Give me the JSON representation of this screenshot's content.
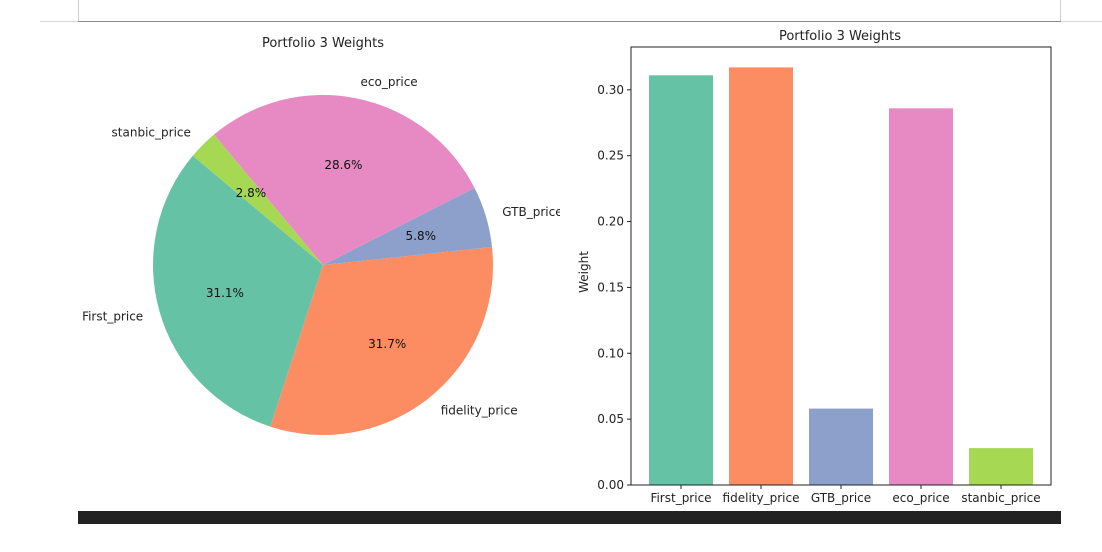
{
  "chart_data": [
    {
      "type": "pie",
      "title": "Portfolio 3 Weights",
      "labels": [
        "First_price",
        "fidelity_price",
        "GTB_price",
        "eco_price",
        "stanbic_price"
      ],
      "values": [
        0.311,
        0.317,
        0.058,
        0.286,
        0.028
      ],
      "pct_labels": [
        "31.1%",
        "31.7%",
        "5.8%",
        "28.6%",
        "2.8%"
      ],
      "colors": [
        "#66c2a5",
        "#fc8d62",
        "#8da0cb",
        "#e78ac3",
        "#a6d854"
      ],
      "start_angle_deg": 140,
      "direction": "counterclockwise"
    },
    {
      "type": "bar",
      "title": "Portfolio 3 Weights",
      "categories": [
        "First_price",
        "fidelity_price",
        "GTB_price",
        "eco_price",
        "stanbic_price"
      ],
      "values": [
        0.311,
        0.317,
        0.058,
        0.286,
        0.028
      ],
      "colors": [
        "#66c2a5",
        "#fc8d62",
        "#8da0cb",
        "#e78ac3",
        "#a6d854"
      ],
      "xlabel": "",
      "ylabel": "Weight",
      "ylim": [
        0,
        0.3325
      ],
      "yticks": [
        "0.00",
        "0.05",
        "0.10",
        "0.15",
        "0.20",
        "0.25",
        "0.30"
      ],
      "grid": false
    }
  ]
}
